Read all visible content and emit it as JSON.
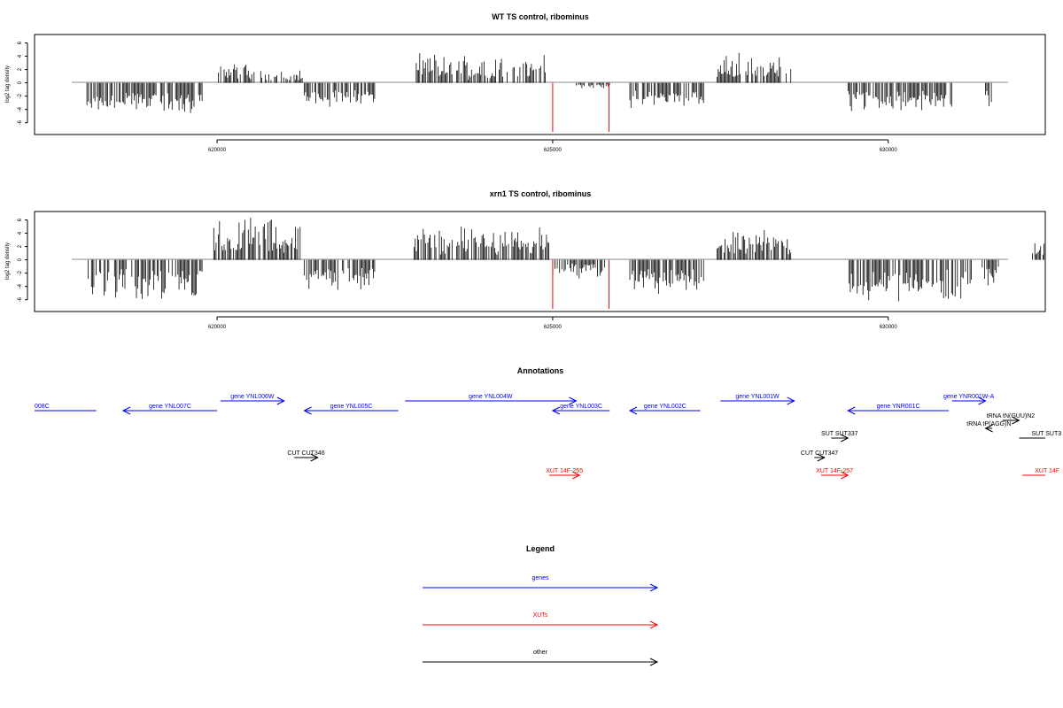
{
  "chart_data": [
    {
      "type": "bar",
      "title": "WT TS control, ribominus",
      "ylabel": "log2 tag density",
      "ylim": [
        -7.5,
        7
      ],
      "yticks": [
        -6,
        -4,
        -2,
        0,
        2,
        4,
        6
      ],
      "xlim": [
        617280,
        632340
      ],
      "xticks": [
        620000,
        625000,
        630000
      ],
      "red_markers_x": [
        625000,
        625840
      ],
      "segments": [
        {
          "x0": 618060,
          "x1": 619780,
          "strand": "minus",
          "min": -5.0,
          "max": -2.8
        },
        {
          "x0": 619950,
          "x1": 620560,
          "strand": "plus",
          "min": 1.0,
          "max": 3.6
        },
        {
          "x0": 620650,
          "x1": 621280,
          "strand": "plus",
          "min": 0.5,
          "max": 2.5
        },
        {
          "x0": 621300,
          "x1": 622350,
          "strand": "minus",
          "min": -3.8,
          "max": -2.0
        },
        {
          "x0": 622950,
          "x1": 624900,
          "strand": "plus",
          "min": 1.2,
          "max": 4.8
        },
        {
          "x0": 625350,
          "x1": 625850,
          "strand": "minus",
          "min": -1.0,
          "max": -0.3
        },
        {
          "x0": 626150,
          "x1": 627250,
          "strand": "minus",
          "min": -4.5,
          "max": -2.5
        },
        {
          "x0": 627450,
          "x1": 628550,
          "strand": "plus",
          "min": 1.5,
          "max": 4.8
        },
        {
          "x0": 629400,
          "x1": 630950,
          "strand": "minus",
          "min": -4.5,
          "max": -2.5
        },
        {
          "x0": 631450,
          "x1": 631550,
          "strand": "minus",
          "min": -4.5,
          "max": -2.0
        }
      ]
    },
    {
      "type": "bar",
      "title": "xrn1 TS control, ribominus",
      "ylabel": "log2 tag density",
      "ylim": [
        -7.5,
        7
      ],
      "yticks": [
        -6,
        -4,
        -2,
        0,
        2,
        4,
        6
      ],
      "xlim": [
        617280,
        632340
      ],
      "xticks": [
        620000,
        625000,
        630000
      ],
      "red_markers_x": [
        625000,
        625840
      ],
      "segments": [
        {
          "x0": 618060,
          "x1": 619780,
          "strand": "minus",
          "min": -6.5,
          "max": -3.0
        },
        {
          "x0": 619950,
          "x1": 621300,
          "strand": "plus",
          "min": 2.0,
          "max": 7.0
        },
        {
          "x0": 621300,
          "x1": 622350,
          "strand": "minus",
          "min": -5.0,
          "max": -2.5
        },
        {
          "x0": 622900,
          "x1": 624950,
          "strand": "plus",
          "min": 2.0,
          "max": 5.5
        },
        {
          "x0": 625000,
          "x1": 625800,
          "strand": "minus",
          "min": -3.0,
          "max": -1.0
        },
        {
          "x0": 626150,
          "x1": 627250,
          "strand": "minus",
          "min": -5.5,
          "max": -3.0
        },
        {
          "x0": 627450,
          "x1": 628550,
          "strand": "plus",
          "min": 2.0,
          "max": 4.8
        },
        {
          "x0": 629400,
          "x1": 631250,
          "strand": "minus",
          "min": -6.5,
          "max": -3.5
        },
        {
          "x0": 631400,
          "x1": 631650,
          "strand": "minus",
          "min": -4.5,
          "max": -1.5
        },
        {
          "x0": 632150,
          "x1": 632340,
          "strand": "plus",
          "min": 1.0,
          "max": 4.0
        }
      ]
    }
  ],
  "annotations": {
    "title": "Annotations",
    "items": [
      {
        "label": "008C",
        "x0": 617280,
        "x1": 618200,
        "dir": "none",
        "color": "#0000ff",
        "row": 2
      },
      {
        "label": "gene YNL007C",
        "x0": 618600,
        "x1": 620000,
        "dir": "left",
        "color": "#0000ff",
        "row": 2
      },
      {
        "label": "gene YNL006W",
        "x0": 620050,
        "x1": 621000,
        "dir": "right",
        "color": "#0000ff",
        "row": 1
      },
      {
        "label": "gene YNL005C",
        "x0": 621300,
        "x1": 622700,
        "dir": "left",
        "color": "#0000ff",
        "row": 2
      },
      {
        "label": "gene YNL004W",
        "x0": 622800,
        "x1": 625350,
        "dir": "right",
        "color": "#0000ff",
        "row": 1
      },
      {
        "label": "gene YNL003C",
        "x0": 625000,
        "x1": 625850,
        "dir": "left",
        "color": "#0000ff",
        "row": 2
      },
      {
        "label": "gene YNL002C",
        "x0": 626150,
        "x1": 627200,
        "dir": "left",
        "color": "#0000ff",
        "row": 2
      },
      {
        "label": "gene YNL001W",
        "x0": 627500,
        "x1": 628600,
        "dir": "right",
        "color": "#0000ff",
        "row": 1
      },
      {
        "label": "gene YNR001C",
        "x0": 629400,
        "x1": 630900,
        "dir": "left",
        "color": "#0000ff",
        "row": 2
      },
      {
        "label": "gene YNR001W-A",
        "x0": 630950,
        "x1": 631450,
        "dir": "right",
        "color": "#0000ff",
        "row": 1
      },
      {
        "label": "tRNA tN(GUU)N2",
        "x0": 631700,
        "x1": 631950,
        "dir": "right",
        "color": "#000000",
        "row": 3
      },
      {
        "label": "tRNA tP(AGG)N",
        "x0": 631450,
        "x1": 631550,
        "dir": "left",
        "color": "#000000",
        "row": 4
      },
      {
        "label": "SUT SUT337",
        "x0": 629150,
        "x1": 629400,
        "dir": "right",
        "color": "#000000",
        "row": 5
      },
      {
        "label": "SUT SUT3",
        "x0": 631950,
        "x1": 632340,
        "dir": "none",
        "color": "#000000",
        "row": 5
      },
      {
        "label": "CUT CUT346",
        "x0": 621150,
        "x1": 621500,
        "dir": "right",
        "color": "#000000",
        "row": 6
      },
      {
        "label": "CUT CUT347",
        "x0": 628900,
        "x1": 629050,
        "dir": "right",
        "color": "#000000",
        "row": 6
      },
      {
        "label": "XUT 14F-255",
        "x0": 624950,
        "x1": 625400,
        "dir": "right",
        "color": "#ff0000",
        "row": 7
      },
      {
        "label": "XUT 14F-257",
        "x0": 629000,
        "x1": 629400,
        "dir": "right",
        "color": "#ff0000",
        "row": 7
      },
      {
        "label": "XUT 14F",
        "x0": 632000,
        "x1": 632340,
        "dir": "none",
        "color": "#ff0000",
        "row": 7
      }
    ]
  },
  "legend": {
    "title": "Legend",
    "entries": [
      {
        "label": "genes",
        "color": "#0000ff"
      },
      {
        "label": "XUTs",
        "color": "#ff0000"
      },
      {
        "label": "other",
        "color": "#000000"
      }
    ]
  }
}
